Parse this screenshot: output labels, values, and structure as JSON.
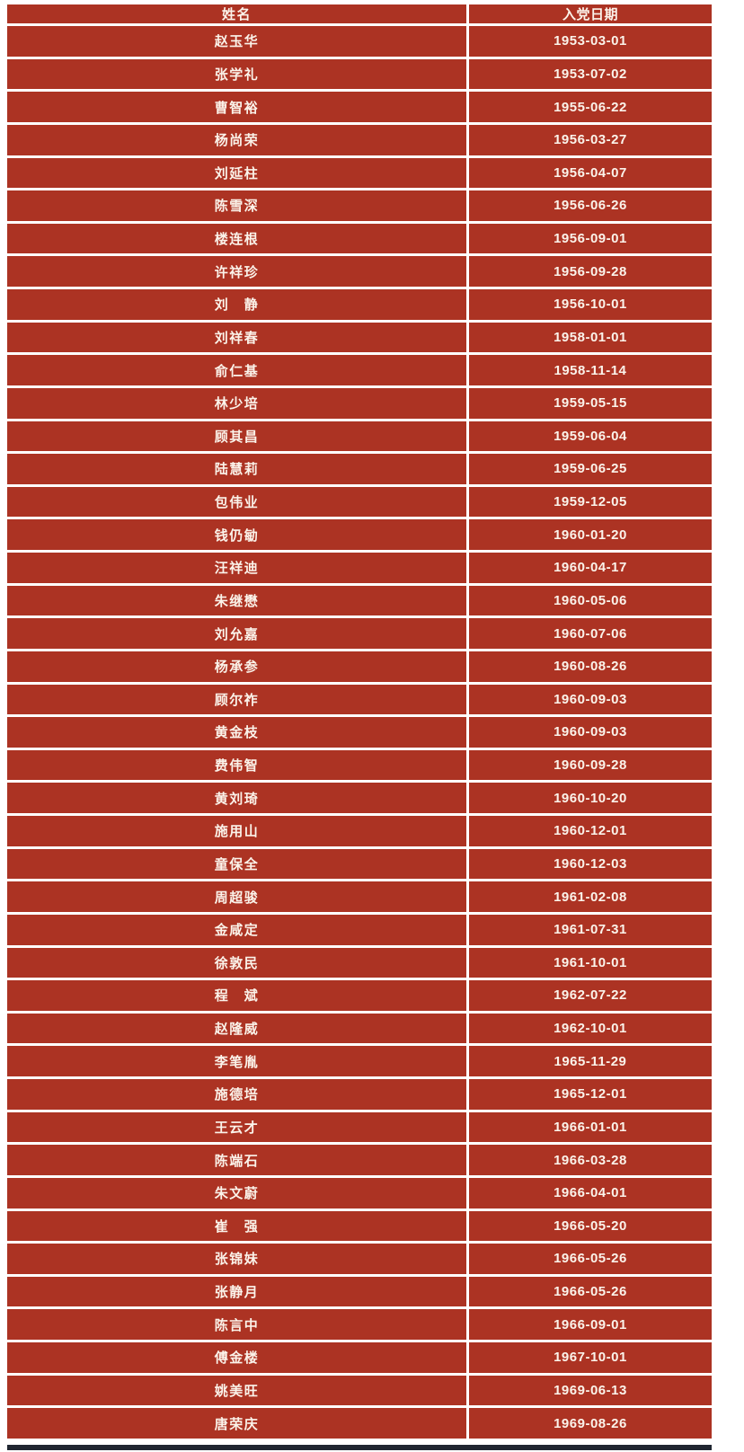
{
  "colors": {
    "cell_bg": "#ac3323",
    "cell_text": "#fbf3ea",
    "border": "#ffffff",
    "bottom_bar": "#202631"
  },
  "table": {
    "columns": [
      "姓名",
      "入党日期"
    ],
    "rows": [
      {
        "name": "赵玉华",
        "date": "1953-03-01"
      },
      {
        "name": "张学礼",
        "date": "1953-07-02"
      },
      {
        "name": "曹智裕",
        "date": "1955-06-22"
      },
      {
        "name": "杨尚荣",
        "date": "1956-03-27"
      },
      {
        "name": "刘延柱",
        "date": "1956-04-07"
      },
      {
        "name": "陈雪深",
        "date": "1956-06-26"
      },
      {
        "name": "楼连根",
        "date": "1956-09-01"
      },
      {
        "name": "许祥珍",
        "date": "1956-09-28"
      },
      {
        "name": "刘　静",
        "date": "1956-10-01"
      },
      {
        "name": "刘祥春",
        "date": "1958-01-01"
      },
      {
        "name": "俞仁基",
        "date": "1958-11-14"
      },
      {
        "name": "林少培",
        "date": "1959-05-15"
      },
      {
        "name": "顾其昌",
        "date": "1959-06-04"
      },
      {
        "name": "陆慧莉",
        "date": "1959-06-25"
      },
      {
        "name": "包伟业",
        "date": "1959-12-05"
      },
      {
        "name": "钱仍勄",
        "date": "1960-01-20"
      },
      {
        "name": "汪祥迪",
        "date": "1960-04-17"
      },
      {
        "name": "朱继懋",
        "date": "1960-05-06"
      },
      {
        "name": "刘允嘉",
        "date": "1960-07-06"
      },
      {
        "name": "杨承参",
        "date": "1960-08-26"
      },
      {
        "name": "顾尔祚",
        "date": "1960-09-03"
      },
      {
        "name": "黄金枝",
        "date": "1960-09-03"
      },
      {
        "name": "费伟智",
        "date": "1960-09-28"
      },
      {
        "name": "黄刘琦",
        "date": "1960-10-20"
      },
      {
        "name": "施用山",
        "date": "1960-12-01"
      },
      {
        "name": "童保全",
        "date": "1960-12-03"
      },
      {
        "name": "周超骏",
        "date": "1961-02-08"
      },
      {
        "name": "金咸定",
        "date": "1961-07-31"
      },
      {
        "name": "徐敦民",
        "date": "1961-10-01"
      },
      {
        "name": "程　斌",
        "date": "1962-07-22"
      },
      {
        "name": "赵隆威",
        "date": "1962-10-01"
      },
      {
        "name": "李笔胤",
        "date": "1965-11-29"
      },
      {
        "name": "施德培",
        "date": "1965-12-01"
      },
      {
        "name": "王云才",
        "date": "1966-01-01"
      },
      {
        "name": "陈端石",
        "date": "1966-03-28"
      },
      {
        "name": "朱文蔚",
        "date": "1966-04-01"
      },
      {
        "name": "崔　强",
        "date": "1966-05-20"
      },
      {
        "name": "张锦妹",
        "date": "1966-05-26"
      },
      {
        "name": "张静月",
        "date": "1966-05-26"
      },
      {
        "name": "陈言中",
        "date": "1966-09-01"
      },
      {
        "name": "傅金楼",
        "date": "1967-10-01"
      },
      {
        "name": "姚美旺",
        "date": "1969-06-13"
      },
      {
        "name": "唐荣庆",
        "date": "1969-08-26"
      }
    ]
  }
}
